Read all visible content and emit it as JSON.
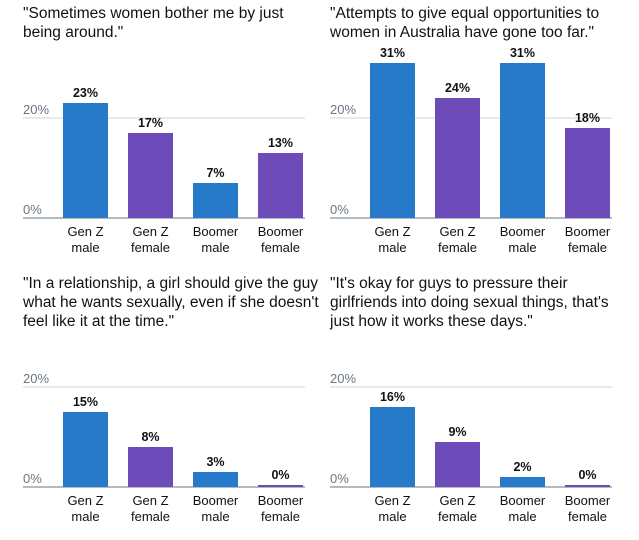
{
  "chart_data": [
    {
      "type": "bar",
      "title": "\"Sometimes women bother me by just being around.\"",
      "categories": [
        [
          "Gen Z",
          "male"
        ],
        [
          "Gen Z",
          "female"
        ],
        [
          "Boomer",
          "male"
        ],
        [
          "Boomer",
          "female"
        ]
      ],
      "values": [
        23,
        17,
        7,
        13
      ],
      "value_labels": [
        "23%",
        "17%",
        "7%",
        "13%"
      ],
      "colors": [
        "#2779c9",
        "#6d4cba",
        "#2779c9",
        "#6d4cba"
      ],
      "ticks": [
        {
          "value": 0,
          "label": "0%"
        },
        {
          "value": 20,
          "label": "20%"
        }
      ],
      "ylim": [
        0,
        33
      ]
    },
    {
      "type": "bar",
      "title": "\"Attempts to give equal opportunities to women in Australia have gone too far.\"",
      "categories": [
        [
          "Gen Z",
          "male"
        ],
        [
          "Gen Z",
          "female"
        ],
        [
          "Boomer",
          "male"
        ],
        [
          "Boomer",
          "female"
        ]
      ],
      "values": [
        31,
        24,
        31,
        18
      ],
      "value_labels": [
        "31%",
        "24%",
        "31%",
        "18%"
      ],
      "colors": [
        "#2779c9",
        "#6d4cba",
        "#2779c9",
        "#6d4cba"
      ],
      "ticks": [
        {
          "value": 0,
          "label": "0%"
        },
        {
          "value": 20,
          "label": "20%"
        }
      ],
      "ylim": [
        0,
        33
      ]
    },
    {
      "type": "bar",
      "title": "\"In a relationship, a girl should give the guy what he wants sexually, even if she doesn't feel like it at the time.\"",
      "categories": [
        [
          "Gen Z",
          "male"
        ],
        [
          "Gen Z",
          "female"
        ],
        [
          "Boomer",
          "male"
        ],
        [
          "Boomer",
          "female"
        ]
      ],
      "values": [
        15,
        8,
        3,
        0
      ],
      "value_labels": [
        "15%",
        "8%",
        "3%",
        "0%"
      ],
      "colors": [
        "#2779c9",
        "#6d4cba",
        "#2779c9",
        "#6d4cba"
      ],
      "ticks": [
        {
          "value": 0,
          "label": "0%"
        },
        {
          "value": 20,
          "label": "20%"
        }
      ],
      "ylim": [
        0,
        33
      ]
    },
    {
      "type": "bar",
      "title": "\"It's okay for guys to pressure their girlfriends into doing sexual things, that's just how it works these days.\"",
      "categories": [
        [
          "Gen Z",
          "male"
        ],
        [
          "Gen Z",
          "female"
        ],
        [
          "Boomer",
          "male"
        ],
        [
          "Boomer",
          "female"
        ]
      ],
      "values": [
        16,
        9,
        2,
        0
      ],
      "value_labels": [
        "16%",
        "9%",
        "2%",
        "0%"
      ],
      "colors": [
        "#2779c9",
        "#6d4cba",
        "#2779c9",
        "#6d4cba"
      ],
      "ticks": [
        {
          "value": 0,
          "label": "0%"
        },
        {
          "value": 20,
          "label": "20%"
        }
      ],
      "ylim": [
        0,
        33
      ]
    }
  ]
}
